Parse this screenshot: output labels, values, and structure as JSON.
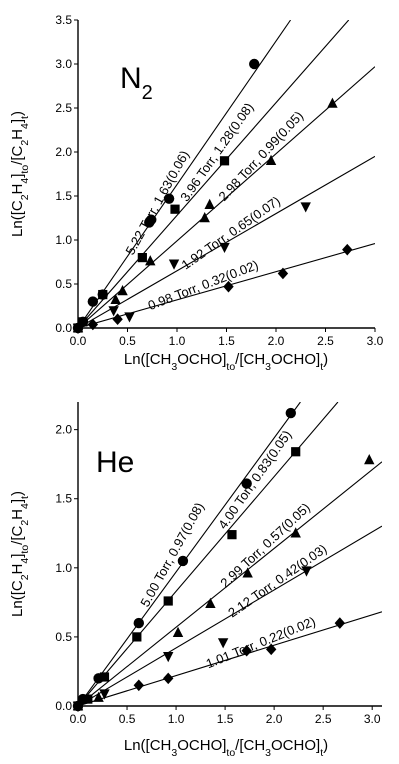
{
  "chart_data": [
    {
      "type": "scatter",
      "gas_label": "N",
      "gas_subscript": "2",
      "xlabel": {
        "pre": "Ln([CH",
        "s1": "3",
        "mid": "OCHO]",
        "s2": "to",
        "mid2": "/[CH",
        "s3": "3",
        "mid3": "OCHO]",
        "s4": "t",
        "post": ")"
      },
      "ylabel": {
        "pre": "Ln([C",
        "s1": "2",
        "mid": "H",
        "s2": "4",
        "mid2": "]",
        "s3": "to",
        "mid3": "/[C",
        "s4": "2",
        "mid4": "H",
        "s5": "4",
        "mid5": "]",
        "s6": "t",
        "post": ")"
      },
      "xlim": [
        0,
        3.0
      ],
      "ylim": [
        0,
        3.5
      ],
      "xticks": [
        0.0,
        0.5,
        1.0,
        1.5,
        2.0,
        2.5,
        3.0
      ],
      "xtick_labels": [
        "0.0",
        "0.5",
        "1.0",
        "1.5",
        "2.0",
        "2.5",
        "3.0"
      ],
      "yticks": [
        0.0,
        0.5,
        1.0,
        1.5,
        2.0,
        2.5,
        3.0,
        3.5
      ],
      "ytick_labels": [
        "0.0",
        "0.5",
        "1.0",
        "1.5",
        "2.0",
        "2.5",
        "3.0",
        "3.5"
      ],
      "series": [
        {
          "name": "5.22 Torr, 1.63(0.06)",
          "marker": "circle",
          "slope": 1.63,
          "x": [
            0.0,
            0.05,
            0.15,
            0.25,
            0.72,
            0.74,
            0.92,
            1.78
          ],
          "y": [
            0.0,
            0.07,
            0.3,
            0.38,
            1.2,
            1.23,
            1.47,
            3.0
          ]
        },
        {
          "name": "3.96 Torr, 1.28(0.08)",
          "marker": "square",
          "slope": 1.28,
          "x": [
            0.0,
            0.05,
            0.25,
            0.65,
            0.98,
            1.48
          ],
          "y": [
            0.0,
            0.07,
            0.38,
            0.8,
            1.35,
            1.9
          ]
        },
        {
          "name": "2.98 Torr, 0.99(0.05)",
          "marker": "triangle-up",
          "slope": 0.99,
          "x": [
            0.0,
            0.38,
            0.45,
            0.73,
            1.28,
            1.33,
            1.95,
            2.57
          ],
          "y": [
            0.0,
            0.32,
            0.42,
            0.76,
            1.25,
            1.4,
            1.9,
            2.55
          ]
        },
        {
          "name": "1.92 Torr, 0.65(0.07)",
          "marker": "triangle-down",
          "slope": 0.65,
          "x": [
            0.0,
            0.36,
            0.52,
            0.97,
            1.48,
            2.3
          ],
          "y": [
            0.0,
            0.2,
            0.13,
            0.73,
            0.92,
            1.38
          ]
        },
        {
          "name": "0.98 Torr, 0.32(0.02)",
          "marker": "diamond",
          "slope": 0.32,
          "x": [
            0.0,
            0.15,
            0.4,
            1.52,
            2.07,
            2.72
          ],
          "y": [
            0.0,
            0.04,
            0.1,
            0.47,
            0.62,
            0.89
          ]
        }
      ]
    },
    {
      "type": "scatter",
      "gas_label": "He",
      "gas_subscript": "",
      "xlabel": {
        "pre": "Ln([CH",
        "s1": "3",
        "mid": "OCHO]",
        "s2": "to",
        "mid2": "/[CH",
        "s3": "3",
        "mid3": "OCHO]",
        "s4": "t",
        "post": ")"
      },
      "ylabel": {
        "pre": "Ln([C",
        "s1": "2",
        "mid": "H",
        "s2": "4",
        "mid2": "]",
        "s3": "to",
        "mid3": "/[C",
        "s4": "2",
        "mid4": "H",
        "s5": "4",
        "mid5": "]",
        "s6": "t",
        "post": ")"
      },
      "xlim": [
        0,
        3.1
      ],
      "ylim": [
        0,
        2.2
      ],
      "xticks": [
        0.0,
        0.5,
        1.0,
        1.5,
        2.0,
        2.5,
        3.0
      ],
      "xtick_labels": [
        "0.0",
        "0.5",
        "1.0",
        "1.5",
        "2.0",
        "2.5",
        "3.0"
      ],
      "yticks": [
        0.0,
        0.5,
        1.0,
        1.5,
        2.0
      ],
      "ytick_labels": [
        "0.0",
        "0.5",
        "1.0",
        "1.5",
        "2.0"
      ],
      "series": [
        {
          "name": "5.00 Torr, 0.97(0.08)",
          "marker": "circle",
          "slope": 0.97,
          "x": [
            0.0,
            0.05,
            0.21,
            0.62,
            1.07,
            1.72,
            2.17
          ],
          "y": [
            0.0,
            0.05,
            0.2,
            0.6,
            1.05,
            1.61,
            2.12
          ]
        },
        {
          "name": "4.00 Torr, 0.83(0.05)",
          "marker": "square",
          "slope": 0.83,
          "x": [
            0.0,
            0.1,
            0.27,
            0.6,
            0.92,
            1.57,
            2.22
          ],
          "y": [
            0.0,
            0.05,
            0.21,
            0.5,
            0.76,
            1.24,
            1.84
          ]
        },
        {
          "name": "2.99 Torr, 0.57(0.05)",
          "marker": "triangle-up",
          "slope": 0.57,
          "x": [
            0.0,
            0.21,
            1.02,
            1.35,
            1.73,
            2.22,
            2.97
          ],
          "y": [
            0.0,
            0.06,
            0.53,
            0.74,
            0.96,
            1.25,
            1.78
          ]
        },
        {
          "name": "2.12 Torr, 0.42(0.03)",
          "marker": "triangle-down",
          "slope": 0.42,
          "x": [
            0.0,
            0.27,
            0.92,
            1.48,
            2.33
          ],
          "y": [
            0.0,
            0.09,
            0.36,
            0.46,
            0.98
          ]
        },
        {
          "name": "1.01 Torr, 0.22(0.02)",
          "marker": "diamond",
          "slope": 0.22,
          "x": [
            0.0,
            0.62,
            0.92,
            1.72,
            1.97,
            2.67
          ],
          "y": [
            0.0,
            0.15,
            0.2,
            0.4,
            0.41,
            0.6
          ]
        }
      ]
    }
  ]
}
